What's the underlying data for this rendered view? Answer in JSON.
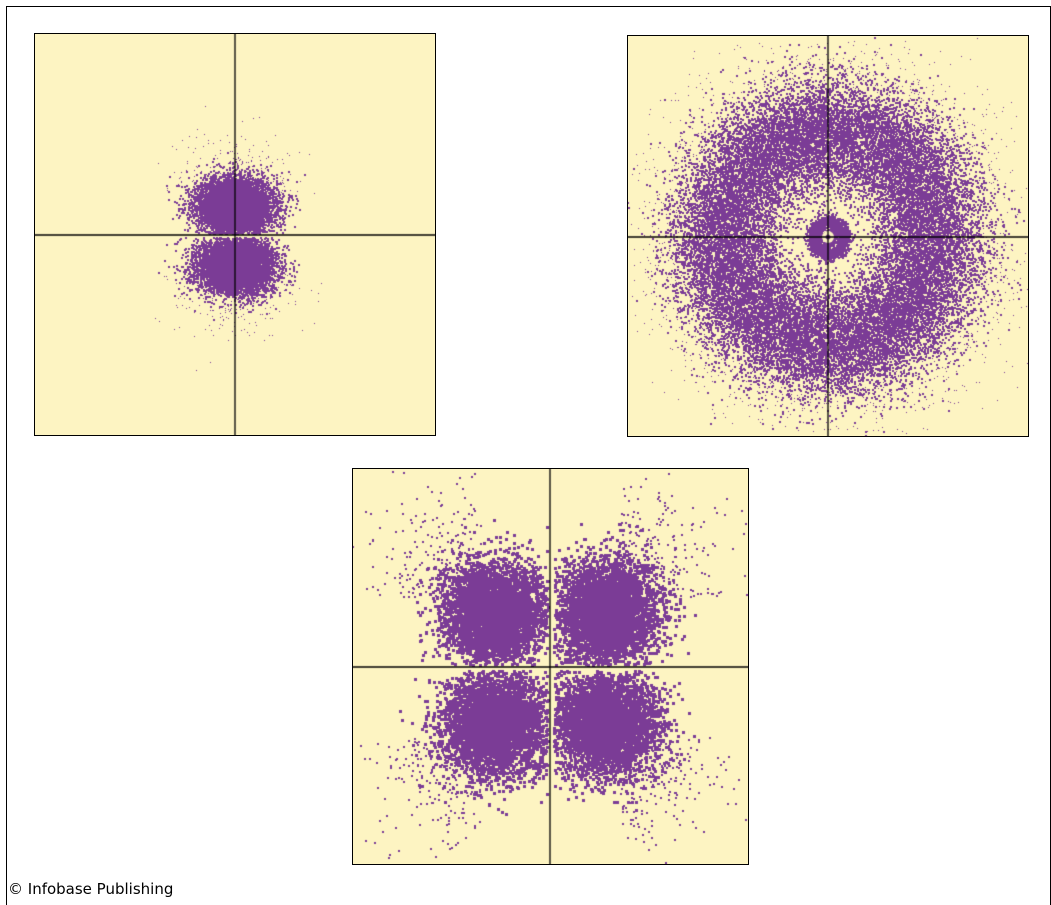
{
  "colors": {
    "panel_background": "#fdf4c2",
    "density_dots": "#7b3c96",
    "axis_lines": "#000000"
  },
  "panels": [
    {
      "shape": "p-orbital",
      "lobes": 2,
      "orientation": "vertical"
    },
    {
      "shape": "s-orbital",
      "rings": 3
    },
    {
      "shape": "d-orbital",
      "lobes": 4,
      "orientation": "diagonal"
    }
  ],
  "credit": "© Infobase Publishing"
}
